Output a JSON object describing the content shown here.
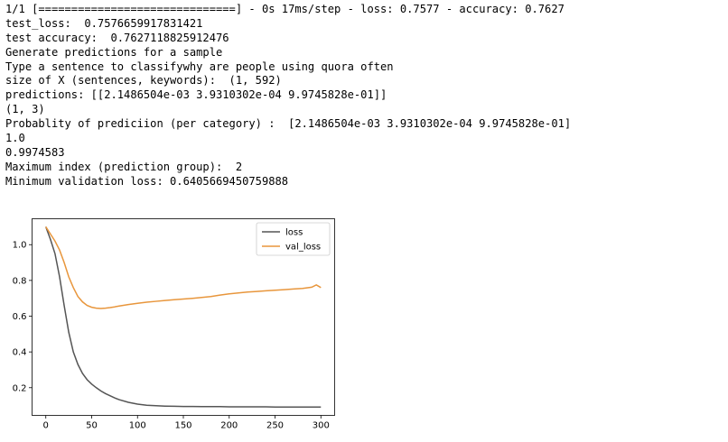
{
  "console": {
    "lines": [
      "1/1 [==============================] - 0s 17ms/step - loss: 0.7577 - accuracy: 0.7627",
      "test_loss:  0.7576659917831421",
      "test accuracy:  0.7627118825912476",
      "Generate predictions for a sample",
      "Type a sentence to classifywhy are people using quora often",
      "size of X (sentences, keywords):  (1, 592)",
      "predictions: [[2.1486504e-03 3.9310302e-04 9.9745828e-01]]",
      "(1, 3)",
      "Probablity of prediciion (per category) :  [2.1486504e-03 3.9310302e-04 9.9745828e-01]",
      "1.0",
      "0.9974583",
      "Maximum index (prediction group):  2",
      "Minimum validation loss: 0.6405669450759888"
    ]
  },
  "chart_data": {
    "type": "line",
    "title": "",
    "xlabel": "",
    "ylabel": "",
    "xlim": [
      -15,
      315
    ],
    "ylim": [
      0.045,
      1.145
    ],
    "xticks": [
      0,
      50,
      100,
      150,
      200,
      250,
      300
    ],
    "yticks": [
      0.2,
      0.4,
      0.6,
      0.8,
      1.0
    ],
    "xtick_labels": [
      "0",
      "50",
      "100",
      "150",
      "200",
      "250",
      "300"
    ],
    "ytick_labels": [
      "0.2",
      "0.4",
      "0.6",
      "0.8",
      "1.0"
    ],
    "grid": false,
    "legend": "top-right",
    "x": [
      0,
      5,
      10,
      15,
      20,
      25,
      30,
      35,
      40,
      45,
      50,
      55,
      60,
      65,
      70,
      75,
      80,
      90,
      100,
      110,
      120,
      130,
      140,
      150,
      160,
      170,
      180,
      190,
      200,
      210,
      220,
      230,
      240,
      250,
      260,
      270,
      280,
      290,
      295,
      300
    ],
    "series": [
      {
        "name": "loss",
        "color": "#555555",
        "values": [
          1.1,
          1.03,
          0.95,
          0.82,
          0.66,
          0.51,
          0.4,
          0.33,
          0.28,
          0.245,
          0.22,
          0.2,
          0.182,
          0.167,
          0.155,
          0.143,
          0.133,
          0.118,
          0.108,
          0.102,
          0.099,
          0.097,
          0.096,
          0.095,
          0.095,
          0.094,
          0.094,
          0.094,
          0.093,
          0.093,
          0.093,
          0.093,
          0.093,
          0.092,
          0.092,
          0.092,
          0.092,
          0.092,
          0.092,
          0.092
        ]
      },
      {
        "name": "val_loss",
        "color": "#e8963c",
        "values": [
          1.1,
          1.06,
          1.02,
          0.97,
          0.9,
          0.82,
          0.76,
          0.71,
          0.68,
          0.66,
          0.65,
          0.645,
          0.643,
          0.645,
          0.648,
          0.652,
          0.657,
          0.665,
          0.672,
          0.678,
          0.683,
          0.688,
          0.692,
          0.696,
          0.7,
          0.705,
          0.71,
          0.718,
          0.725,
          0.73,
          0.735,
          0.738,
          0.742,
          0.745,
          0.748,
          0.752,
          0.755,
          0.762,
          0.775,
          0.76
        ]
      }
    ]
  }
}
